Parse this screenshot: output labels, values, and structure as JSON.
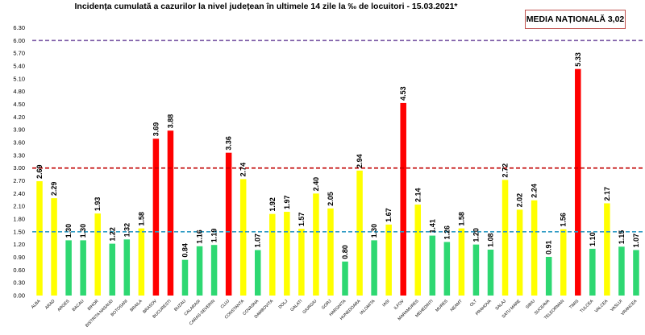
{
  "chart_data": {
    "type": "bar",
    "title": "Incidența cumulată a cazurilor la nivel județean în ultimele 14 zile   la ‰ de locuitori  - 15.03.2021*",
    "national_box": "MEDIA NAȚIONALĂ 3,02",
    "categories": [
      "ALBA",
      "ARAD",
      "ARGES",
      "BACAU",
      "BIHOR",
      "BISTRITA NASAUD",
      "BOTOSANI",
      "BRAILA",
      "BRASOV",
      "BUCURESTI",
      "BUZAU",
      "CALARASI",
      "CARAS-SEVERIN",
      "CLUJ",
      "CONSTANTA",
      "COVASNA",
      "DAMBOVITA",
      "DOLJ",
      "GALATI",
      "GIURGIU",
      "GORJ",
      "HARGHITA",
      "HUNEDOARA",
      "IALOMITA",
      "IASI",
      "ILFOV",
      "MARAMURES",
      "MEHEDINTI",
      "MURES",
      "NEAMT",
      "OLT",
      "PRAHOVA",
      "SALAJ",
      "SATU MARE",
      "SIBIU",
      "SUCEAVA",
      "TELEORMAN",
      "TIMIS",
      "TULCEA",
      "VALCEA",
      "VASLUI",
      "VRANCEA"
    ],
    "values": [
      2.69,
      2.29,
      1.3,
      1.3,
      1.93,
      1.22,
      1.32,
      1.58,
      3.69,
      3.88,
      0.84,
      1.16,
      1.19,
      3.36,
      2.74,
      1.07,
      1.92,
      1.97,
      1.57,
      2.4,
      2.05,
      0.8,
      2.94,
      1.3,
      1.67,
      4.53,
      2.14,
      1.41,
      1.26,
      1.58,
      1.2,
      1.08,
      2.72,
      2.02,
      2.24,
      0.91,
      1.56,
      5.33,
      1.1,
      2.17,
      1.15,
      1.07
    ],
    "value_labels": [
      "2.69",
      "2.29",
      "1.30",
      "1.30",
      "1.93",
      "1.22",
      "1.32",
      "1.58",
      "3.69",
      "3.88",
      "0.84",
      "1.16",
      "1.19",
      "3.36",
      "2.74",
      "1.07",
      "1.92",
      "1.97",
      "1.57",
      "2.40",
      "2.05",
      "0.80",
      "2.94",
      "1.30",
      "1.67",
      "4.53",
      "2.14",
      "1.41",
      "1.26",
      "1.58",
      "1.20",
      "1.08",
      "2.72",
      "2.02",
      "2.24",
      "0.91",
      "1.56",
      "5.33",
      "1.10",
      "2.17",
      "1.15",
      "1.07"
    ],
    "ylim": [
      0,
      6.3
    ],
    "yticks": [
      "0.00",
      "0.30",
      "0.60",
      "0.90",
      "1.20",
      "1.50",
      "1.80",
      "2.10",
      "2.40",
      "2.70",
      "3.00",
      "3.30",
      "3.60",
      "3.90",
      "4.20",
      "4.50",
      "4.80",
      "5.10",
      "5.40",
      "5.70",
      "6.00",
      "6.30"
    ],
    "grid": false,
    "reference_lines": [
      {
        "value": 6.0,
        "color": "#7b5aa6"
      },
      {
        "value": 3.0,
        "color": "#c00000"
      },
      {
        "value": 1.5,
        "color": "#2e9ac4"
      }
    ],
    "colors": {
      "green": "#2ed872",
      "yellow": "#ffff00",
      "red": "#ff0000"
    },
    "bar_color_rule": "green <= 1.5 < yellow <= 3.0 < red"
  }
}
